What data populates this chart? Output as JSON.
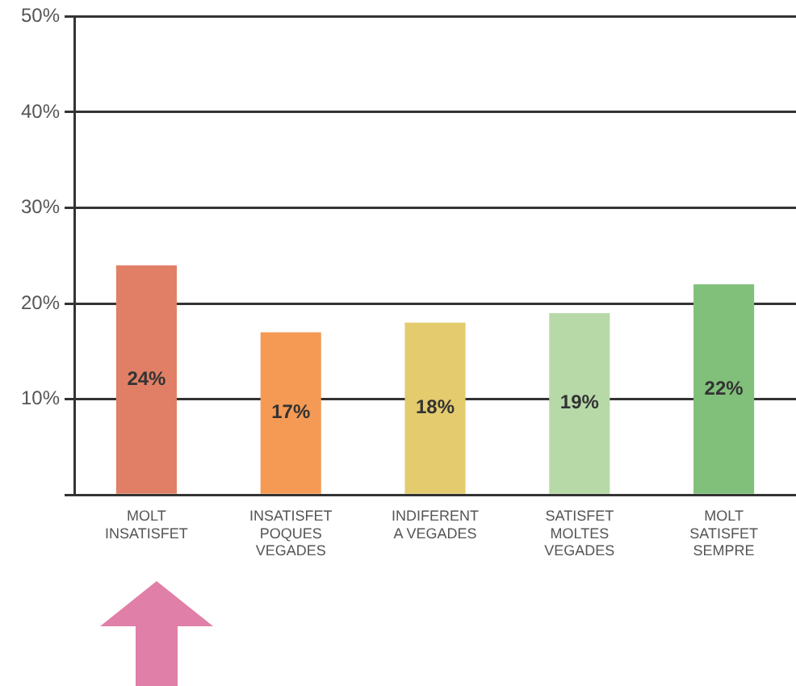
{
  "chart_data": {
    "type": "bar",
    "categories": [
      "MOLT\nINSATISFET",
      "INSATISFET\nPOQUES\nVEGADES",
      "INDIFERENT\nA VEGADES",
      "SATISFET\nMOLTES\nVEGADES",
      "MOLT\nSATISFET\nSEMPRE"
    ],
    "values": [
      24,
      17,
      18,
      19,
      22
    ],
    "colors": [
      "#e07f66",
      "#f59a55",
      "#e3cb6e",
      "#b7d9a8",
      "#80c07a"
    ],
    "value_labels": [
      "24%",
      "17%",
      "18%",
      "19%",
      "22%"
    ],
    "ylim": [
      0,
      50
    ],
    "yticks": [
      {
        "value": 0,
        "label": null
      },
      {
        "value": 10,
        "label": "10%"
      },
      {
        "value": 20,
        "label": "20%"
      },
      {
        "value": 30,
        "label": "30%"
      },
      {
        "value": 40,
        "label": "40%"
      },
      {
        "value": 50,
        "label": "50%"
      }
    ],
    "grid": "y",
    "legend": false
  }
}
